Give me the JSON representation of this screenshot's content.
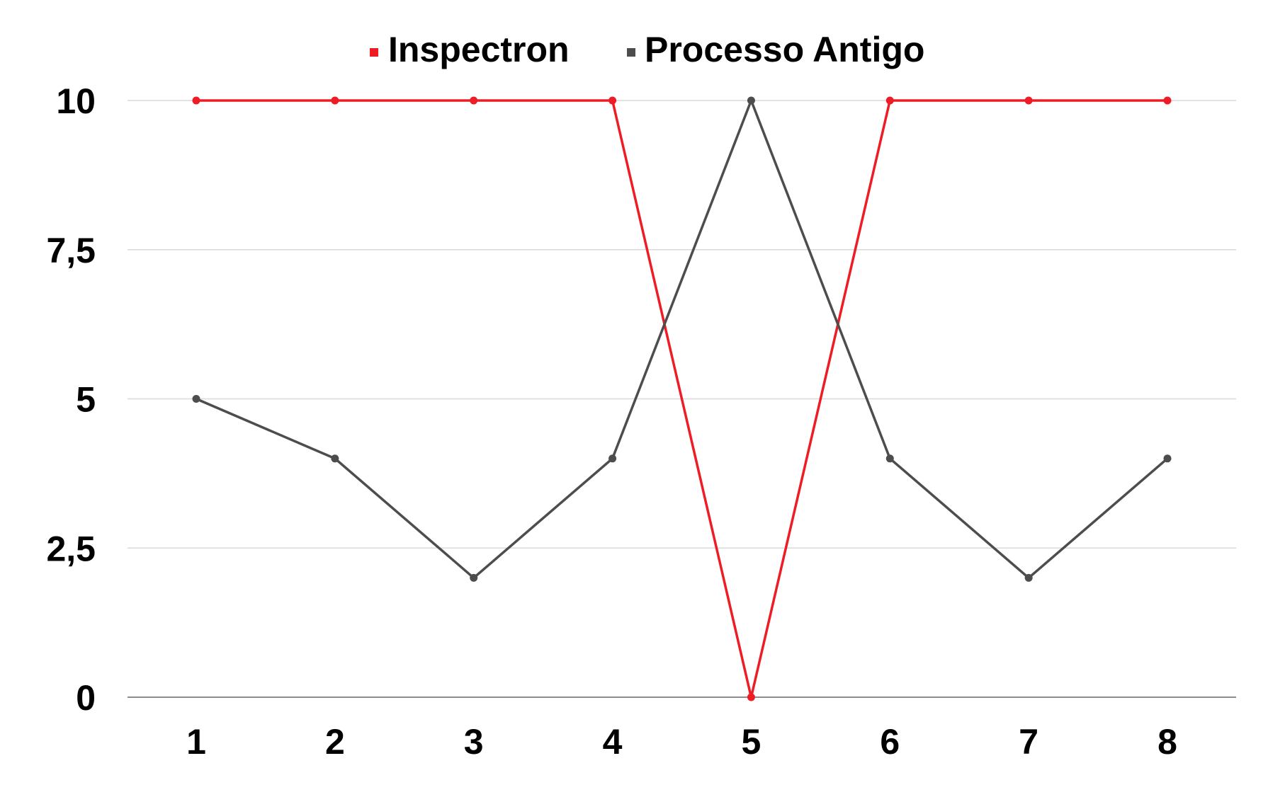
{
  "chart_data": {
    "type": "line",
    "title": "",
    "xlabel": "",
    "ylabel": "",
    "categories": [
      "1",
      "2",
      "3",
      "4",
      "5",
      "6",
      "7",
      "8"
    ],
    "y_ticks": [
      "0",
      "2,5",
      "5",
      "7,5",
      "10"
    ],
    "y_tick_values": [
      0,
      2.5,
      5,
      7.5,
      10
    ],
    "ylim": [
      0,
      10
    ],
    "grid": true,
    "legend_position": "top-center",
    "series": [
      {
        "name": "Inspectron",
        "color": "#ee1c25",
        "values": [
          10,
          10,
          10,
          10,
          0,
          10,
          10,
          10
        ]
      },
      {
        "name": "Processo Antigo",
        "color": "#4d4d4d",
        "values": [
          5,
          4,
          2,
          4,
          10,
          4,
          2,
          4
        ]
      }
    ]
  }
}
